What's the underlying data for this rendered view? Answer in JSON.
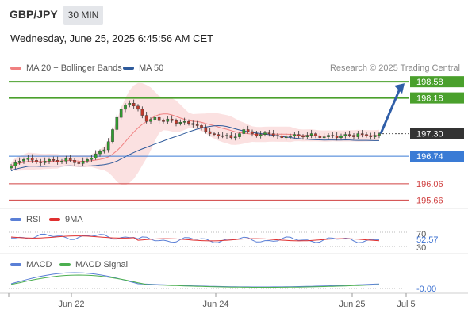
{
  "header": {
    "pair": "GBP/JPY",
    "timeframe": "30 MIN",
    "datetime": "Wednesday, June 25, 2025 6:45:56 AM CET",
    "credit": "Research © 2025 Trading Central"
  },
  "legend": {
    "ma20": {
      "label": "MA 20 + Bollinger Bands",
      "color": "#f08080"
    },
    "ma50": {
      "label": "MA 50",
      "color": "#2e5a9b"
    },
    "rsi": {
      "label": "RSI",
      "color": "#5a7fd6"
    },
    "rsi_ma": {
      "label": "9MA",
      "color": "#e03030"
    },
    "macd": {
      "label": "MACD",
      "color": "#5a7fd6"
    },
    "macd_signal": {
      "label": "MACD Signal",
      "color": "#4caf50"
    }
  },
  "chart_data": {
    "type": "candlestick",
    "y_range": [
      195.55,
      198.72
    ],
    "x_labels": [
      "Jun 22",
      "Jun 24",
      "Jun 25",
      "Jul 5"
    ],
    "levels": [
      {
        "value": 198.58,
        "label": "198.58",
        "kind": "resistance",
        "color": "#4aa02c"
      },
      {
        "value": 198.18,
        "label": "198.18",
        "kind": "resistance",
        "color": "#4aa02c"
      },
      {
        "value": 197.3,
        "label": "197.30",
        "kind": "last",
        "color": "#333333"
      },
      {
        "value": 196.74,
        "label": "196.74",
        "kind": "pivot",
        "color": "#3a7bd5"
      },
      {
        "value": 196.06,
        "label": "196.06",
        "kind": "support",
        "color": "#d04040"
      },
      {
        "value": 195.66,
        "label": "195.66",
        "kind": "support",
        "color": "#d04040"
      }
    ],
    "close_prices": [
      196.5,
      196.58,
      196.62,
      196.66,
      196.7,
      196.64,
      196.6,
      196.58,
      196.62,
      196.66,
      196.64,
      196.6,
      196.62,
      196.68,
      196.64,
      196.58,
      196.56,
      196.62,
      196.66,
      196.7,
      196.8,
      196.86,
      196.9,
      197.1,
      197.4,
      197.7,
      197.9,
      198.0,
      198.05,
      197.98,
      197.9,
      197.75,
      197.6,
      197.65,
      197.7,
      197.62,
      197.6,
      197.66,
      197.62,
      197.55,
      197.58,
      197.6,
      197.55,
      197.52,
      197.5,
      197.45,
      197.35,
      197.3,
      197.28,
      197.25,
      197.24,
      197.26,
      197.2,
      197.22,
      197.3,
      197.4,
      197.35,
      197.3,
      197.25,
      197.28,
      197.32,
      197.3,
      197.26,
      197.24,
      197.2,
      197.22,
      197.25,
      197.28,
      197.24,
      197.22,
      197.26,
      197.3,
      197.24,
      197.2,
      197.22,
      197.26,
      197.24,
      197.2,
      197.25,
      197.28,
      197.26,
      197.22,
      197.3,
      197.28,
      197.25,
      197.22,
      197.26,
      197.3
    ],
    "projection": {
      "from": 197.3,
      "to": 198.58
    },
    "rsi": {
      "value": "52.57",
      "levels": [
        "70",
        "30"
      ]
    },
    "macd": {
      "value": "-0.00"
    }
  }
}
